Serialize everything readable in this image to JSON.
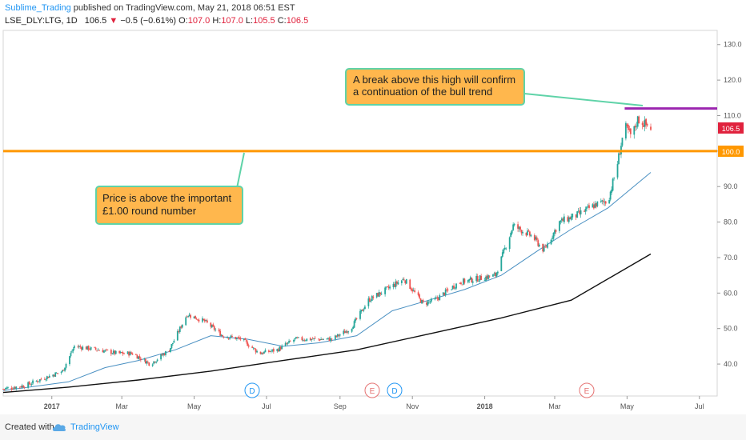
{
  "header": {
    "author": "Sublime_Trading",
    "published_text": " published on TradingView.com, May 21, 2018 06:51 EST",
    "symbol": "LSE_DLY:LTG, 1D",
    "last": "106.5",
    "change": "−0.5 (−0.61%)",
    "open_label": "O:",
    "open": "107.0",
    "high_label": "H:",
    "high": "107.0",
    "low_label": "L:",
    "low": "105.5",
    "close_label": "C:",
    "close": "106.5"
  },
  "footer": {
    "created_with": "Created with",
    "brand": "TradingView"
  },
  "annotations": {
    "upper": {
      "line1": "A break above this high will confirm",
      "line2": "a continuation of the bull trend"
    },
    "lower": {
      "line1": "Price is above the important",
      "line2": "£1.00 round number"
    }
  },
  "price_badges": {
    "current": "106.5",
    "level": "100.0"
  },
  "event_markers": [
    "D",
    "E",
    "D",
    "E"
  ],
  "colors": {
    "up": "#26a69a",
    "down": "#ef5350",
    "ma_fast": "#4a90c2",
    "ma_slow": "#111111",
    "support_line": "#ff9800",
    "resistance_line": "#9c27b0",
    "callout_fill": "#ffb74d",
    "callout_border": "#5fd3a8",
    "badge_current": "#e0223d",
    "badge_level": "#ff9800"
  },
  "chart_data": {
    "type": "candlestick",
    "title": "LSE_DLY:LTG, 1D",
    "xlabel": "",
    "ylabel": "",
    "ylim": [
      31,
      134
    ],
    "xlim": [
      "2016-11-21",
      "2018-07-16"
    ],
    "y_ticks": [
      "130.0",
      "120.0",
      "110.0",
      "100.0",
      "90.0",
      "80.0",
      "70.0",
      "60.0",
      "50.0",
      "40.0"
    ],
    "x_ticks": [
      "2017",
      "Mar",
      "May",
      "Jul",
      "Sep",
      "Nov",
      "2018",
      "Mar",
      "May",
      "Jul"
    ],
    "horizontal_lines": [
      {
        "value": 100.0,
        "from": "2016-11-21",
        "to": "2018-07-16",
        "color": "#ff9800"
      },
      {
        "value": 112.0,
        "from": "2018-04-29",
        "to": "2018-07-16",
        "color": "#9c27b0"
      }
    ],
    "price_path": [
      [
        "2016-11-21",
        33
      ],
      [
        "2016-12-10",
        34
      ],
      [
        "2016-12-25",
        36
      ],
      [
        "2017-01-10",
        38
      ],
      [
        "2017-01-20",
        45
      ],
      [
        "2017-02-10",
        44
      ],
      [
        "2017-02-25",
        43
      ],
      [
        "2017-03-10",
        43
      ],
      [
        "2017-03-25",
        40
      ],
      [
        "2017-04-10",
        44
      ],
      [
        "2017-04-25",
        54
      ],
      [
        "2017-05-10",
        52
      ],
      [
        "2017-05-25",
        48
      ],
      [
        "2017-06-10",
        47
      ],
      [
        "2017-06-25",
        43
      ],
      [
        "2017-07-10",
        44
      ],
      [
        "2017-07-25",
        47
      ],
      [
        "2017-08-10",
        47
      ],
      [
        "2017-08-25",
        47
      ],
      [
        "2017-09-10",
        50
      ],
      [
        "2017-09-25",
        58
      ],
      [
        "2017-10-10",
        61
      ],
      [
        "2017-10-25",
        64
      ],
      [
        "2017-11-10",
        57
      ],
      [
        "2017-11-20",
        58
      ],
      [
        "2017-12-10",
        63
      ],
      [
        "2017-12-25",
        64
      ],
      [
        "2018-01-10",
        65
      ],
      [
        "2018-01-25",
        79
      ],
      [
        "2018-02-10",
        76
      ],
      [
        "2018-02-20",
        72
      ],
      [
        "2018-03-05",
        80
      ],
      [
        "2018-03-20",
        82
      ],
      [
        "2018-04-05",
        85
      ],
      [
        "2018-04-15",
        86
      ],
      [
        "2018-04-22",
        95
      ],
      [
        "2018-04-29",
        107
      ],
      [
        "2018-05-05",
        104
      ],
      [
        "2018-05-10",
        109
      ],
      [
        "2018-05-21",
        106.5
      ]
    ],
    "ma_fast": [
      [
        "2016-11-21",
        32.5
      ],
      [
        "2017-01-15",
        35
      ],
      [
        "2017-02-15",
        39
      ],
      [
        "2017-03-15",
        41
      ],
      [
        "2017-04-15",
        44
      ],
      [
        "2017-05-15",
        48
      ],
      [
        "2017-06-15",
        47
      ],
      [
        "2017-07-15",
        45
      ],
      [
        "2017-08-15",
        46
      ],
      [
        "2017-09-15",
        48
      ],
      [
        "2017-10-15",
        55
      ],
      [
        "2017-11-15",
        58
      ],
      [
        "2017-12-15",
        61
      ],
      [
        "2018-01-15",
        65
      ],
      [
        "2018-02-15",
        72
      ],
      [
        "2018-03-15",
        78
      ],
      [
        "2018-04-15",
        84
      ],
      [
        "2018-05-21",
        94
      ]
    ],
    "ma_slow": [
      [
        "2016-11-21",
        32
      ],
      [
        "2017-01-15",
        33.5
      ],
      [
        "2017-03-15",
        35.5
      ],
      [
        "2017-05-15",
        38
      ],
      [
        "2017-07-15",
        41
      ],
      [
        "2017-09-15",
        44
      ],
      [
        "2017-11-15",
        48.5
      ],
      [
        "2018-01-15",
        53
      ],
      [
        "2018-03-15",
        58
      ],
      [
        "2018-05-21",
        71
      ]
    ]
  }
}
